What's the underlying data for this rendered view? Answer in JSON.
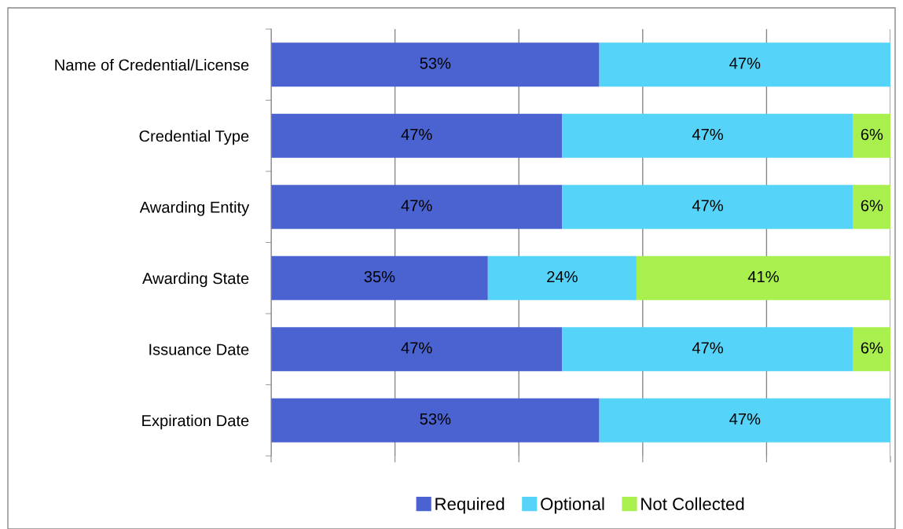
{
  "chart_data": {
    "type": "bar",
    "orientation": "horizontal",
    "stacked": true,
    "categories": [
      "Name of Credential/License",
      "Credential Type",
      "Awarding Entity",
      "Awarding State",
      "Issuance Date",
      "Expiration Date"
    ],
    "series": [
      {
        "name": "Required",
        "color": "#4a63d0",
        "values": [
          53,
          47,
          47,
          35,
          47,
          53
        ],
        "value_labels": [
          "53%",
          "47%",
          "47%",
          "35%",
          "47%",
          "53%"
        ]
      },
      {
        "name": "Optional",
        "color": "#55d3f8",
        "values": [
          47,
          47,
          47,
          24,
          47,
          47
        ],
        "value_labels": [
          "47%",
          "47%",
          "47%",
          "24%",
          "47%",
          "47%"
        ]
      },
      {
        "name": "Not Collected",
        "color": "#a9ef4e",
        "values": [
          null,
          6,
          6,
          41,
          6,
          null
        ],
        "value_labels": [
          null,
          "6%",
          "6%",
          "41%",
          "6%",
          null
        ]
      }
    ],
    "xlim": [
      0,
      100
    ],
    "xticks": [
      {
        "value": 0,
        "label": null
      },
      {
        "value": 20,
        "label": null
      },
      {
        "value": 40,
        "label": null
      },
      {
        "value": 60,
        "label": null
      },
      {
        "value": 80,
        "label": null
      },
      {
        "value": 100,
        "label": null
      }
    ],
    "grid": "x",
    "legend": "bottom",
    "tick_labels": "y"
  }
}
